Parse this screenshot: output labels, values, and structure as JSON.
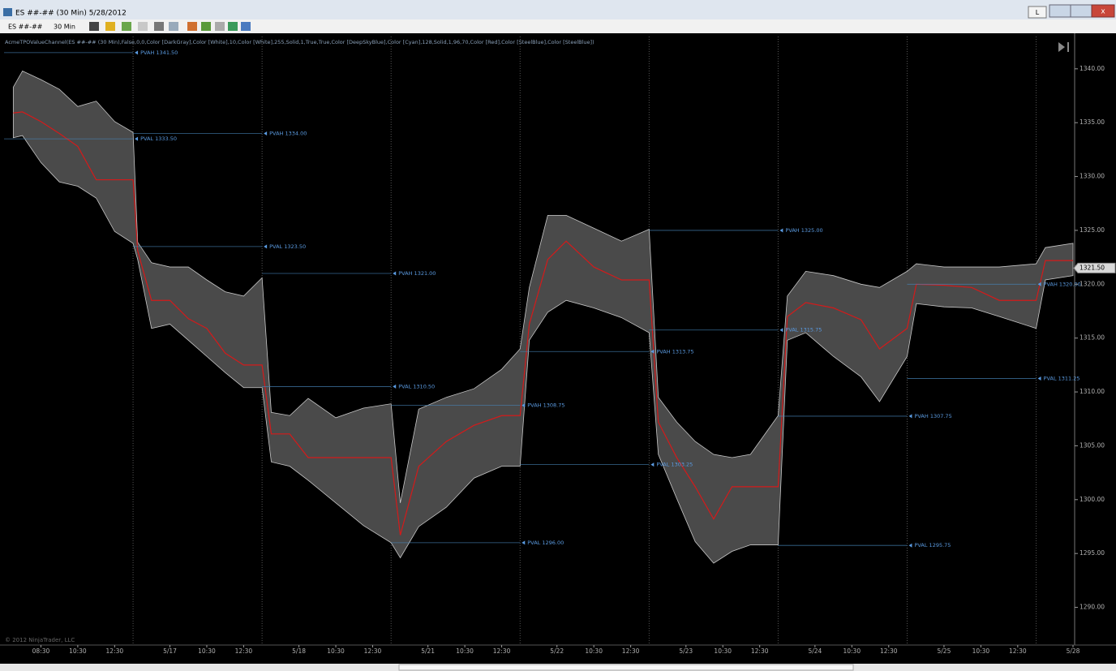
{
  "window": {
    "title": "ES ##-## (30 Min)  5/28/2012",
    "button": "L"
  },
  "toolbar": {
    "instrument": "ES ##-##",
    "interval": "30 Min"
  },
  "indicator_label": "AcmeTPOValueChannel(ES ##-## (30 Min),False,0,0,Color [DarkGray],Color [White],10,Color [White],255,Solid,1,True,True,Color [DeepSkyBlue],Color [Cyan],128,Solid,1,96,70,Color [Red],Color [SteelBlue],Color [SteelBlue])",
  "copyright": "© 2012 NinjaTrader, LLC",
  "chart_data": {
    "type": "channel",
    "xlim": [
      -14,
      102
    ],
    "ylim": [
      1286.5,
      1343
    ],
    "yticks": [
      {
        "value": 1290,
        "label": "1290.00"
      },
      {
        "value": 1295,
        "label": "1295.00"
      },
      {
        "value": 1300,
        "label": "1300.00"
      },
      {
        "value": 1305,
        "label": "1305.00"
      },
      {
        "value": 1310,
        "label": "1310.00"
      },
      {
        "value": 1315,
        "label": "1315.00"
      },
      {
        "value": 1320,
        "label": "1320.00"
      },
      {
        "value": 1325,
        "label": "1325.00"
      },
      {
        "value": 1330,
        "label": "1330.00"
      },
      {
        "value": 1335,
        "label": "1335.00"
      },
      {
        "value": 1340,
        "label": "1340.00"
      }
    ],
    "xticks": [
      {
        "value": -10,
        "label": "08:30"
      },
      {
        "value": -6,
        "label": "10:30"
      },
      {
        "value": -2,
        "label": "12:30"
      },
      {
        "value": 4,
        "label": "5/17"
      },
      {
        "value": 8,
        "label": "10:30"
      },
      {
        "value": 12,
        "label": "12:30"
      },
      {
        "value": 18,
        "label": "5/18"
      },
      {
        "value": 22,
        "label": "10:30"
      },
      {
        "value": 26,
        "label": "12:30"
      },
      {
        "value": 32,
        "label": "5/21"
      },
      {
        "value": 36,
        "label": "10:30"
      },
      {
        "value": 40,
        "label": "12:30"
      },
      {
        "value": 46,
        "label": "5/22"
      },
      {
        "value": 50,
        "label": "10:30"
      },
      {
        "value": 54,
        "label": "12:30"
      },
      {
        "value": 60,
        "label": "5/23"
      },
      {
        "value": 64,
        "label": "10:30"
      },
      {
        "value": 68,
        "label": "12:30"
      },
      {
        "value": 74,
        "label": "5/24"
      },
      {
        "value": 78,
        "label": "10:30"
      },
      {
        "value": 82,
        "label": "12:30"
      },
      {
        "value": 88,
        "label": "5/25"
      },
      {
        "value": 92,
        "label": "10:30"
      },
      {
        "value": 96,
        "label": "12:30"
      },
      {
        "value": 102,
        "label": "5/28"
      }
    ],
    "sessions": [
      0,
      14,
      28,
      42,
      56,
      70,
      84,
      98
    ],
    "channel": {
      "fill": "#4a4a4a",
      "edge": "#c8c8c8",
      "line_color": "#d41a1a",
      "x": [
        -13,
        -12,
        -10,
        -8,
        -6,
        -4,
        -2,
        0,
        0.5,
        2,
        4,
        6,
        8,
        10,
        12,
        14,
        15,
        17,
        19,
        22,
        25,
        28,
        29,
        31,
        34,
        37,
        40,
        42,
        43,
        45,
        47,
        50,
        53,
        56,
        57,
        59,
        61,
        63,
        65,
        67,
        70,
        71,
        73,
        76,
        79,
        81,
        84,
        85,
        88,
        91,
        94,
        98,
        99,
        102
      ],
      "upper": [
        1338.3,
        1339.8,
        1339.0,
        1338.1,
        1336.5,
        1337.0,
        1335.1,
        1334.1,
        1323.9,
        1322.0,
        1321.6,
        1321.6,
        1320.4,
        1319.3,
        1318.9,
        1320.6,
        1308.1,
        1307.8,
        1309.4,
        1307.6,
        1308.5,
        1308.9,
        1299.7,
        1308.4,
        1309.5,
        1310.3,
        1312.1,
        1314.0,
        1319.7,
        1326.4,
        1326.4,
        1325.2,
        1324.0,
        1325.1,
        1309.5,
        1307.2,
        1305.4,
        1304.2,
        1303.9,
        1304.2,
        1307.8,
        1318.9,
        1321.2,
        1320.8,
        1320.0,
        1319.7,
        1321.2,
        1321.9,
        1321.6,
        1321.6,
        1321.6,
        1321.9,
        1323.4,
        1323.8
      ],
      "middle": [
        1335.9,
        1336.0,
        1335.1,
        1334.0,
        1332.8,
        1329.7,
        1329.7,
        1329.7,
        1323.1,
        1318.5,
        1318.5,
        1316.8,
        1315.9,
        1313.6,
        1312.5,
        1312.5,
        1306.1,
        1306.1,
        1303.9,
        1303.9,
        1303.9,
        1303.9,
        1296.7,
        1303.1,
        1305.4,
        1306.9,
        1307.8,
        1307.8,
        1316.3,
        1322.3,
        1324.0,
        1321.6,
        1320.4,
        1320.4,
        1307.2,
        1303.9,
        1301.2,
        1298.2,
        1301.2,
        1301.2,
        1301.2,
        1317.0,
        1318.3,
        1317.8,
        1316.7,
        1314.0,
        1315.9,
        1320.0,
        1319.9,
        1319.7,
        1318.5,
        1318.5,
        1322.2,
        1322.2
      ],
      "lower": [
        1333.6,
        1333.8,
        1331.3,
        1329.5,
        1329.1,
        1328.0,
        1324.9,
        1323.8,
        1322.3,
        1315.9,
        1316.3,
        1314.8,
        1313.3,
        1311.8,
        1310.4,
        1310.4,
        1303.5,
        1303.1,
        1301.8,
        1299.7,
        1297.6,
        1296.0,
        1294.6,
        1297.5,
        1299.3,
        1302.0,
        1303.1,
        1303.1,
        1314.8,
        1317.4,
        1318.5,
        1317.8,
        1316.9,
        1315.5,
        1304.2,
        1300.1,
        1296.1,
        1294.1,
        1295.2,
        1295.8,
        1295.8,
        1314.8,
        1315.5,
        1313.3,
        1311.4,
        1309.1,
        1313.3,
        1318.2,
        1317.9,
        1317.8,
        1317.0,
        1315.9,
        1320.4,
        1320.8
      ]
    },
    "level_color": "#4682b4",
    "levels": [
      {
        "label": "PVAH 1341.50",
        "value": 1341.5,
        "start": -14,
        "end": 0
      },
      {
        "label": "PVAL 1333.50",
        "value": 1333.5,
        "start": -14,
        "end": 0
      },
      {
        "label": "PVAH 1334.00",
        "value": 1334,
        "start": 0,
        "end": 14
      },
      {
        "label": "PVAL 1323.50",
        "value": 1323.5,
        "start": 0,
        "end": 14
      },
      {
        "label": "PVAH 1321.00",
        "value": 1321,
        "start": 14,
        "end": 28
      },
      {
        "label": "PVAL 1310.50",
        "value": 1310.5,
        "start": 14,
        "end": 28
      },
      {
        "label": "PVAH 1308.75",
        "value": 1308.75,
        "start": 28,
        "end": 42
      },
      {
        "label": "PVAL 1296.00",
        "value": 1296,
        "start": 28,
        "end": 42
      },
      {
        "label": "PVAH 1313.75",
        "value": 1313.75,
        "start": 42,
        "end": 56
      },
      {
        "label": "PVAL 1303.25",
        "value": 1303.25,
        "start": 42,
        "end": 56
      },
      {
        "label": "PVAH 1325.00",
        "value": 1325,
        "start": 56,
        "end": 70
      },
      {
        "label": "PVAL 1315.75",
        "value": 1315.75,
        "start": 56,
        "end": 70
      },
      {
        "label": "PVAH 1307.75",
        "value": 1307.75,
        "start": 70,
        "end": 84
      },
      {
        "label": "PVAL 1295.75",
        "value": 1295.75,
        "start": 70,
        "end": 84
      },
      {
        "label": "PVAH 1320.00",
        "value": 1320,
        "start": 84,
        "end": 98
      },
      {
        "label": "PVAL 1311.25",
        "value": 1311.25,
        "start": 84,
        "end": 98
      }
    ],
    "last_price": {
      "value": 1321.5,
      "label": "1321.50"
    }
  }
}
